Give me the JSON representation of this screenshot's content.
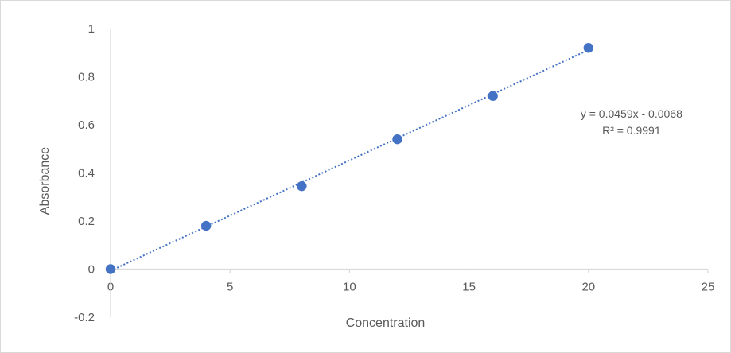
{
  "chart_data": {
    "type": "scatter",
    "title": "",
    "xlabel": "Concentration",
    "ylabel": "Absorbance",
    "xlim": [
      0,
      25
    ],
    "ylim": [
      -0.2,
      1
    ],
    "x_ticks": [
      0,
      5,
      10,
      15,
      20,
      25
    ],
    "y_ticks": [
      -0.2,
      0,
      0.2,
      0.4,
      0.6,
      0.8,
      1
    ],
    "x_tick_labels": [
      "0",
      "5",
      "10",
      "15",
      "20",
      "25"
    ],
    "y_tick_labels": [
      "-0.2",
      "0",
      "0.2",
      "0.4",
      "0.6",
      "0.8",
      "1"
    ],
    "grid": false,
    "legend": "none",
    "series": [
      {
        "x": [
          0,
          4,
          8,
          12,
          16,
          20
        ],
        "y": [
          0,
          0.18,
          0.345,
          0.54,
          0.72,
          0.92
        ],
        "color": "#4472C4"
      }
    ],
    "trendline": {
      "type": "linear",
      "slope": 0.0459,
      "intercept": -0.0068,
      "x_range": [
        0,
        20
      ],
      "style": "dotted",
      "color": "#4472C4",
      "equation_label": "y = 0.0459x - 0.0068",
      "r2_label": "R² = 0.9991"
    }
  }
}
